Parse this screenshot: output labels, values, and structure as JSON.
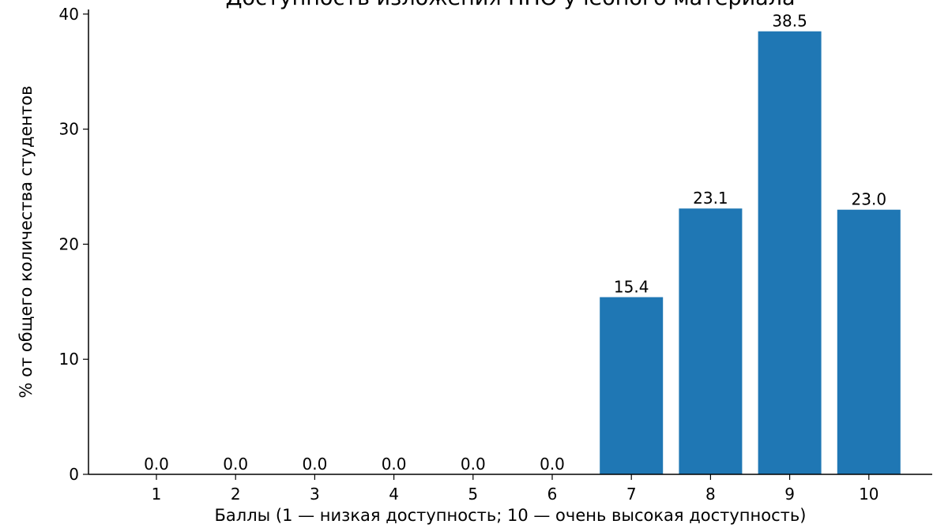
{
  "chart_data": {
    "type": "bar",
    "title": "Доступность изложения НПО учебного материала",
    "xlabel": "Баллы (1 — низкая доступность; 10 — очень высокая доступность)",
    "ylabel": "% от общего количества студентов",
    "categories": [
      "1",
      "2",
      "3",
      "4",
      "5",
      "6",
      "7",
      "8",
      "9",
      "10"
    ],
    "values": [
      0.0,
      0.0,
      0.0,
      0.0,
      0.0,
      0.0,
      15.4,
      23.1,
      38.5,
      23.0
    ],
    "value_labels": [
      "0.0",
      "0.0",
      "0.0",
      "0.0",
      "0.0",
      "0.0",
      "15.4",
      "23.1",
      "38.5",
      "23.0"
    ],
    "ylim": [
      0,
      40.4
    ],
    "yticks": [
      0,
      10,
      20,
      30,
      40
    ],
    "grid": false,
    "bar_color": "#1f77b4"
  }
}
